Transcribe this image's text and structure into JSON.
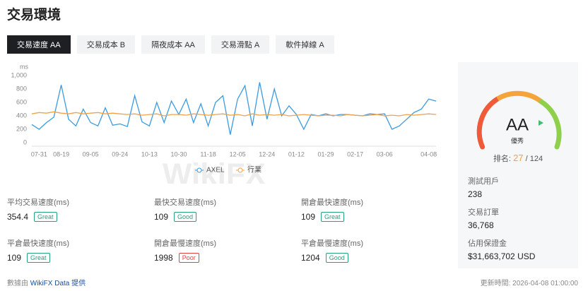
{
  "header": {
    "title": "交易環境"
  },
  "tabs": [
    "交易速度 AA",
    "交易成本 B",
    "隔夜成本 AA",
    "交易滑點 A",
    "軟件掉線 A"
  ],
  "watermark": "WikiFX",
  "chart_data": {
    "type": "line",
    "y_label": "ms",
    "categories": [
      null,
      "07-31",
      null,
      null,
      "08-19",
      null,
      null,
      null,
      "09-05",
      null,
      null,
      null,
      "09-24",
      null,
      null,
      null,
      "10-13",
      null,
      null,
      null,
      "10-30",
      null,
      null,
      null,
      "11-18",
      null,
      null,
      null,
      "12-05",
      null,
      null,
      null,
      "12-24",
      null,
      null,
      null,
      "01-12",
      null,
      null,
      null,
      "01-29",
      null,
      null,
      null,
      "02-17",
      null,
      null,
      null,
      "03-06",
      null,
      null,
      null,
      null,
      null,
      "04-08",
      null
    ],
    "series": [
      {
        "name": "AXEL",
        "color": "#3b9be0",
        "values": [
          270,
          200,
          300,
          380,
          860,
          350,
          250,
          500,
          300,
          250,
          520,
          260,
          280,
          240,
          700,
          310,
          250,
          600,
          300,
          620,
          420,
          650,
          300,
          580,
          250,
          600,
          700,
          120,
          650,
          850,
          250,
          900,
          350,
          800,
          400,
          550,
          420,
          200,
          420,
          400,
          430,
          400,
          420,
          420,
          410,
          400,
          430,
          420,
          430,
          200,
          250,
          350,
          450,
          500,
          650,
          620
        ]
      },
      {
        "name": "行業",
        "color": "#f0a24b",
        "values": [
          430,
          450,
          440,
          460,
          440,
          430,
          450,
          430,
          440,
          450,
          430,
          440,
          430,
          420,
          430,
          410,
          420,
          430,
          400,
          420,
          420,
          410,
          430,
          420,
          410,
          420,
          430,
          410,
          420,
          400,
          430,
          410,
          420,
          410,
          420,
          400,
          410,
          420,
          410,
          400,
          410,
          410,
          400,
          420,
          410,
          400,
          410,
          420,
          400,
          410,
          400,
          420,
          410,
          420,
          430,
          420
        ]
      }
    ],
    "ylim": [
      0,
      1000
    ],
    "yticks": [
      0,
      200,
      400,
      600,
      800,
      {
        "value": 1000,
        "label": "1,000"
      }
    ]
  },
  "stats": [
    {
      "label": "平均交易速度(ms)",
      "value": "354.4",
      "rating": "Great",
      "rating_color": "#26a17b"
    },
    {
      "label": "最快交易速度(ms)",
      "value": "109",
      "rating": "Good",
      "rating_color": "#26a17b"
    },
    {
      "label": "開倉最快速度(ms)",
      "value": "109",
      "rating": "Great",
      "rating_color": "#26a17b"
    },
    {
      "label": "平倉最快速度(ms)",
      "value": "109",
      "rating": "Great",
      "rating_color": "#26a17b"
    },
    {
      "label": "開倉最慢速度(ms)",
      "value": "1998",
      "rating": "Poor",
      "rating_color": "#e0453e"
    },
    {
      "label": "平倉最慢速度(ms)",
      "value": "1204",
      "rating": "Good",
      "rating_color": "#26a17b"
    }
  ],
  "side": {
    "grade": "AA",
    "grade_text": "優秀",
    "rank_label": "排名:",
    "rank": 27,
    "rank_total": 124,
    "items": [
      {
        "label": "測試用戶",
        "value": "238"
      },
      {
        "label": "交易訂單",
        "value": "36,768"
      },
      {
        "label": "佔用保證金",
        "value": "$31,663,702 USD"
      }
    ]
  },
  "footer": {
    "source_prefix": "數據由",
    "source": "WikiFX Data 提供",
    "updated": "更新時間: 2026-04-08 01:00:00"
  }
}
